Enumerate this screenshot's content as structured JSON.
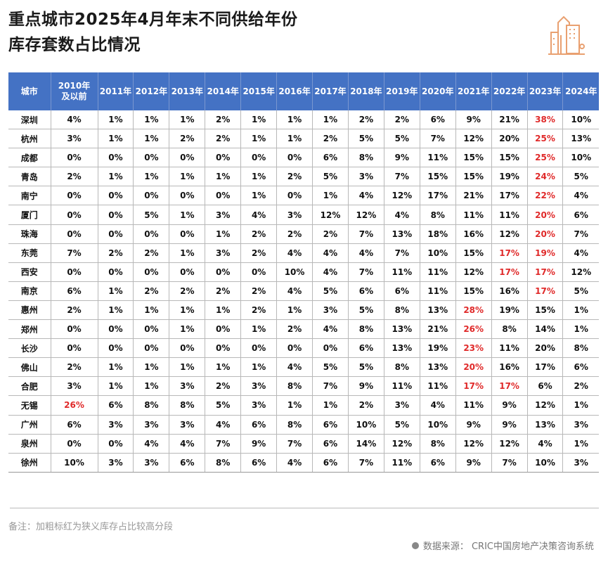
{
  "title": {
    "line1": "重点城市2025年4月年末不同供给年份",
    "line2": "库存套数占比情况"
  },
  "logo": {
    "icon": "city-buildings-icon",
    "color": "#E9A070"
  },
  "colors": {
    "header_bg": "#4472C4",
    "highlight": "#E02A2A"
  },
  "chart_data": {
    "type": "table",
    "columns": [
      "城市",
      "2010年及以前",
      "2011年",
      "2012年",
      "2013年",
      "2014年",
      "2015年",
      "2016年",
      "2017年",
      "2018年",
      "2019年",
      "2020年",
      "2021年",
      "2022年",
      "2023年",
      "2024年"
    ],
    "header_first_line": "2010年",
    "header_second_line": "及以前",
    "rows": [
      [
        "深圳",
        "4%",
        "1%",
        "1%",
        "1%",
        "2%",
        "1%",
        "1%",
        "1%",
        "2%",
        "2%",
        "6%",
        "9%",
        "21%",
        "38%",
        "10%"
      ],
      [
        "杭州",
        "3%",
        "1%",
        "1%",
        "2%",
        "2%",
        "1%",
        "1%",
        "2%",
        "5%",
        "5%",
        "7%",
        "12%",
        "20%",
        "25%",
        "13%"
      ],
      [
        "成都",
        "0%",
        "0%",
        "0%",
        "0%",
        "0%",
        "0%",
        "0%",
        "6%",
        "8%",
        "9%",
        "11%",
        "15%",
        "15%",
        "25%",
        "10%"
      ],
      [
        "青岛",
        "2%",
        "1%",
        "1%",
        "1%",
        "1%",
        "1%",
        "2%",
        "5%",
        "3%",
        "7%",
        "15%",
        "15%",
        "19%",
        "24%",
        "5%"
      ],
      [
        "南宁",
        "0%",
        "0%",
        "0%",
        "0%",
        "0%",
        "1%",
        "0%",
        "1%",
        "4%",
        "12%",
        "17%",
        "21%",
        "17%",
        "22%",
        "4%"
      ],
      [
        "厦门",
        "0%",
        "0%",
        "5%",
        "1%",
        "3%",
        "4%",
        "3%",
        "12%",
        "12%",
        "4%",
        "8%",
        "11%",
        "11%",
        "20%",
        "6%"
      ],
      [
        "珠海",
        "0%",
        "0%",
        "0%",
        "0%",
        "1%",
        "2%",
        "2%",
        "2%",
        "7%",
        "13%",
        "18%",
        "16%",
        "12%",
        "20%",
        "7%"
      ],
      [
        "东莞",
        "7%",
        "2%",
        "2%",
        "1%",
        "3%",
        "2%",
        "4%",
        "4%",
        "4%",
        "7%",
        "10%",
        "15%",
        "17%",
        "19%",
        "4%"
      ],
      [
        "西安",
        "0%",
        "0%",
        "0%",
        "0%",
        "0%",
        "0%",
        "10%",
        "4%",
        "7%",
        "11%",
        "11%",
        "12%",
        "17%",
        "17%",
        "12%"
      ],
      [
        "南京",
        "6%",
        "1%",
        "2%",
        "2%",
        "2%",
        "2%",
        "4%",
        "5%",
        "6%",
        "6%",
        "11%",
        "15%",
        "16%",
        "17%",
        "5%"
      ],
      [
        "惠州",
        "2%",
        "1%",
        "1%",
        "1%",
        "1%",
        "2%",
        "1%",
        "3%",
        "5%",
        "8%",
        "13%",
        "28%",
        "19%",
        "15%",
        "1%"
      ],
      [
        "郑州",
        "0%",
        "0%",
        "0%",
        "1%",
        "0%",
        "1%",
        "2%",
        "4%",
        "8%",
        "13%",
        "21%",
        "26%",
        "8%",
        "14%",
        "1%"
      ],
      [
        "长沙",
        "0%",
        "0%",
        "0%",
        "0%",
        "0%",
        "0%",
        "0%",
        "0%",
        "6%",
        "13%",
        "19%",
        "23%",
        "11%",
        "20%",
        "8%"
      ],
      [
        "佛山",
        "2%",
        "1%",
        "1%",
        "1%",
        "1%",
        "1%",
        "4%",
        "5%",
        "5%",
        "8%",
        "13%",
        "20%",
        "16%",
        "17%",
        "6%"
      ],
      [
        "合肥",
        "3%",
        "1%",
        "1%",
        "3%",
        "2%",
        "3%",
        "8%",
        "7%",
        "9%",
        "11%",
        "11%",
        "17%",
        "17%",
        "6%",
        "2%"
      ],
      [
        "无锡",
        "26%",
        "6%",
        "8%",
        "8%",
        "5%",
        "3%",
        "1%",
        "1%",
        "2%",
        "3%",
        "4%",
        "11%",
        "9%",
        "12%",
        "1%"
      ],
      [
        "广州",
        "6%",
        "3%",
        "3%",
        "3%",
        "4%",
        "6%",
        "8%",
        "6%",
        "10%",
        "5%",
        "10%",
        "9%",
        "9%",
        "13%",
        "3%"
      ],
      [
        "泉州",
        "0%",
        "0%",
        "4%",
        "4%",
        "7%",
        "9%",
        "7%",
        "6%",
        "14%",
        "12%",
        "8%",
        "12%",
        "12%",
        "4%",
        "1%"
      ],
      [
        "徐州",
        "10%",
        "3%",
        "3%",
        "6%",
        "8%",
        "6%",
        "4%",
        "6%",
        "7%",
        "11%",
        "6%",
        "9%",
        "7%",
        "10%",
        "3%"
      ]
    ],
    "highlighted": [
      [
        "深圳",
        "2023年"
      ],
      [
        "杭州",
        "2023年"
      ],
      [
        "成都",
        "2023年"
      ],
      [
        "青岛",
        "2023年"
      ],
      [
        "南宁",
        "2023年"
      ],
      [
        "厦门",
        "2023年"
      ],
      [
        "珠海",
        "2023年"
      ],
      [
        "东莞",
        "2022年"
      ],
      [
        "东莞",
        "2023年"
      ],
      [
        "西安",
        "2022年"
      ],
      [
        "西安",
        "2023年"
      ],
      [
        "南京",
        "2023年"
      ],
      [
        "惠州",
        "2021年"
      ],
      [
        "郑州",
        "2021年"
      ],
      [
        "长沙",
        "2021年"
      ],
      [
        "佛山",
        "2021年"
      ],
      [
        "合肥",
        "2021年"
      ],
      [
        "合肥",
        "2022年"
      ],
      [
        "无锡",
        "2010年及以前"
      ]
    ]
  },
  "footer": {
    "note": "备注：加粗标红为狭义库存占比较高分段",
    "source": "数据来源：  CRIC中国房地产决策咨询系统"
  }
}
